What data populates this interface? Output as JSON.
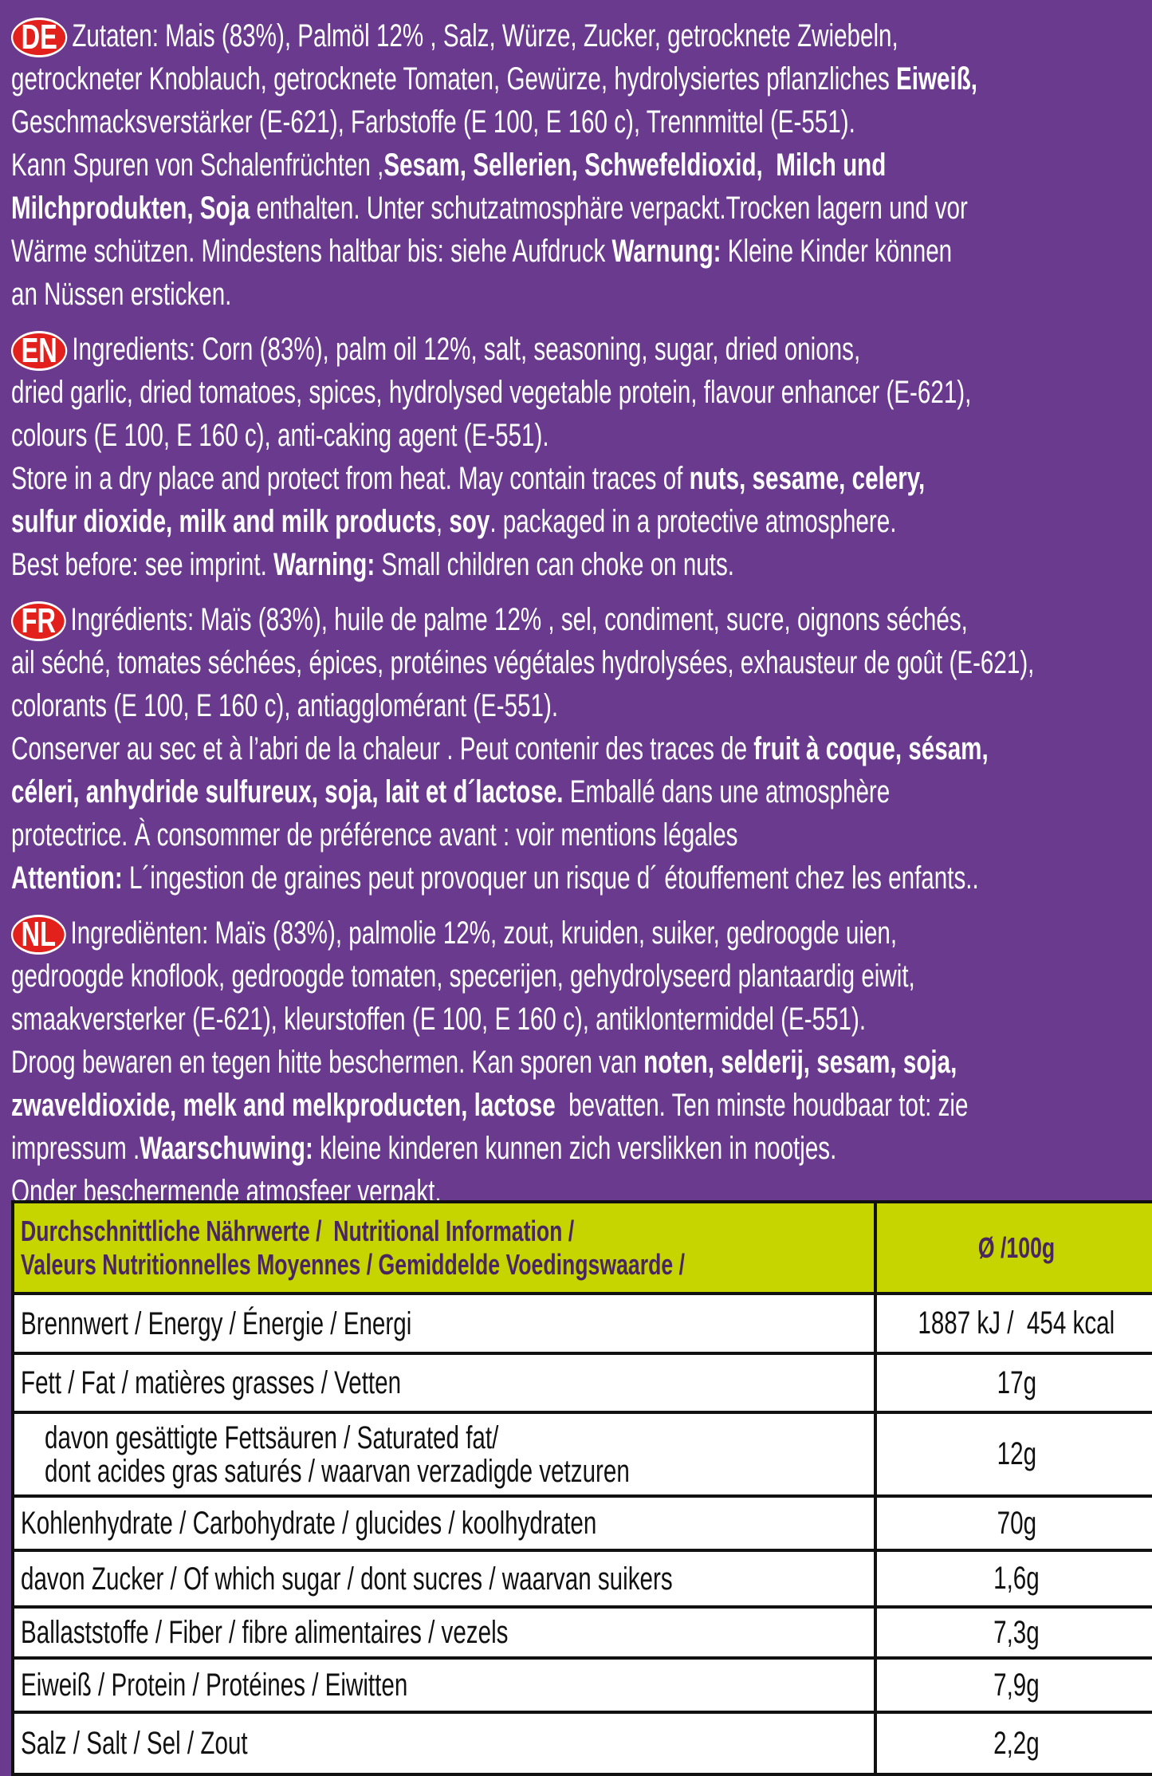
{
  "sections": [
    {
      "badge": "DE",
      "lines": [
        [
          "Zutaten: Mais (83%), Palmöl 12% , Salz, Würze, Zucker, getrocknete Zwiebeln,"
        ],
        [
          "getrockneter Knoblauch, getrocknete Tomaten, Gewürze, hydrolysiertes pflanzliches ",
          {
            "bold": "Eiweiß,"
          }
        ],
        [
          "Geschmacksverstärker (E-621), Farbstoffe (E 100, E 160 c), Trennmittel (E-551)."
        ],
        [
          "Kann Spuren von Schalenfrüchten ,",
          {
            "bold": "Sesam, Sellerien, Schwefeldioxid,  Milch und"
          }
        ],
        [
          {
            "bold": "Milchprodukten, Soja"
          },
          " enthalten. Unter schutzatmosphäre verpackt.Trocken lagern und vor"
        ],
        [
          "Wärme schützen. Mindestens haltbar bis: siehe Aufdruck ",
          {
            "bold": "Warnung:"
          },
          " Kleine Kinder können"
        ],
        [
          "an Nüssen ersticken."
        ]
      ]
    },
    {
      "badge": "EN",
      "lines": [
        [
          "Ingredients: Corn (83%), palm oil 12%, salt, seasoning, sugar, dried onions,"
        ],
        [
          "dried garlic, dried tomatoes, spices, hydrolysed vegetable protein, flavour enhancer (E-621),"
        ],
        [
          "colours (E 100, E 160 c), anti-caking agent (E-551)."
        ],
        [
          "Store in a dry place and protect from heat. May contain traces of ",
          {
            "bold": "nuts, sesame, celery,"
          }
        ],
        [
          {
            "bold": "sulfur dioxide, milk and milk products"
          },
          ", ",
          {
            "bold": "soy"
          },
          ". packaged in a protective atmosphere."
        ],
        [
          "Best before: see imprint. ",
          {
            "bold": "Warning:"
          },
          " Small children can choke on nuts."
        ]
      ]
    },
    {
      "badge": "FR",
      "lines": [
        [
          "Ingrédients: Maïs (83%), huile de palme 12% , sel, condiment, sucre, oignons séchés,"
        ],
        [
          "ail séché, tomates séchées, épices, protéines végétales hydrolysées, exhausteur de goût (E-621),"
        ],
        [
          "colorants (E 100, E 160 c), antiagglomérant (E-551)."
        ],
        [
          "Conserver au sec et à l’abri de la chaleur . Peut contenir des traces de ",
          {
            "bold": "fruit à coque, sésam,"
          }
        ],
        [
          {
            "bold": "céleri, anhydride sulfureux, soja, lait et d´lactose."
          },
          " Emballé dans une atmosphère"
        ],
        [
          "protectrice. À consommer de préférence avant : voir mentions légales"
        ],
        [
          {
            "bold": "Attention:"
          },
          " L´ingestion de graines peut provoquer un risque d´ étouffement chez les enfants.."
        ]
      ]
    },
    {
      "badge": "NL",
      "lines": [
        [
          "Ingrediënten: Maïs (83%), palmolie 12%, zout, kruiden, suiker, gedroogde uien,"
        ],
        [
          "gedroogde knoflook, gedroogde tomaten, specerijen, gehydrolyseerd plantaardig eiwit,"
        ],
        [
          "smaakversterker (E-621), kleurstoffen (E 100, E 160 c), antiklontermiddel (E-551)."
        ],
        [
          "Droog bewaren en tegen hitte beschermen. Kan sporen van ",
          {
            "bold": "noten, selderij, sesam, soja,"
          }
        ],
        [
          {
            "bold": "zwaveldioxide, melk and melkproducten, lactose"
          },
          "  bevatten. Ten minste houdbaar tot: zie"
        ],
        [
          "impressum .",
          {
            "bold": "Waarschuwing:"
          },
          " kleine kinderen kunnen zich verslikken in nootjes."
        ],
        [
          "Onder beschermende atmosfeer verpakt."
        ]
      ]
    }
  ],
  "table": {
    "header": {
      "label": [
        "Durchschnittliche Nährwerte /  Nutritional Information /",
        "Valeurs Nutritionnelles Moyennes / Gemiddelde Voedingswaarde /"
      ],
      "value": "Ø /100g"
    },
    "rows": [
      {
        "label": [
          "Brennwert / Energy / Énergie / Energi"
        ],
        "value": "1887 kJ /  454 kcal"
      },
      {
        "label": [
          "Fett / Fat / matières grasses / Vetten"
        ],
        "value": "17g"
      },
      {
        "label": [
          "davon gesättigte Fettsäuren / Saturated fat/",
          "dont acides gras saturés / waarvan verzadigde vetzuren"
        ],
        "value": "12g"
      },
      {
        "label": [
          "Kohlenhydrate / Carbohydrate / glucides / koolhydraten"
        ],
        "value": "70g"
      },
      {
        "label": [
          "davon Zucker / Of which sugar / dont sucres / waarvan suikers"
        ],
        "value": "1,6g"
      },
      {
        "label": [
          "Ballaststoffe / Fiber / fibre alimentaires / vezels"
        ],
        "value": "7,3g"
      },
      {
        "label": [
          "Eiweiß / Protein / Protéines / Eiwitten"
        ],
        "value": "7,9g"
      },
      {
        "label": [
          "Salz / Salt / Sel / Zout"
        ],
        "value": "2,2g"
      }
    ]
  }
}
